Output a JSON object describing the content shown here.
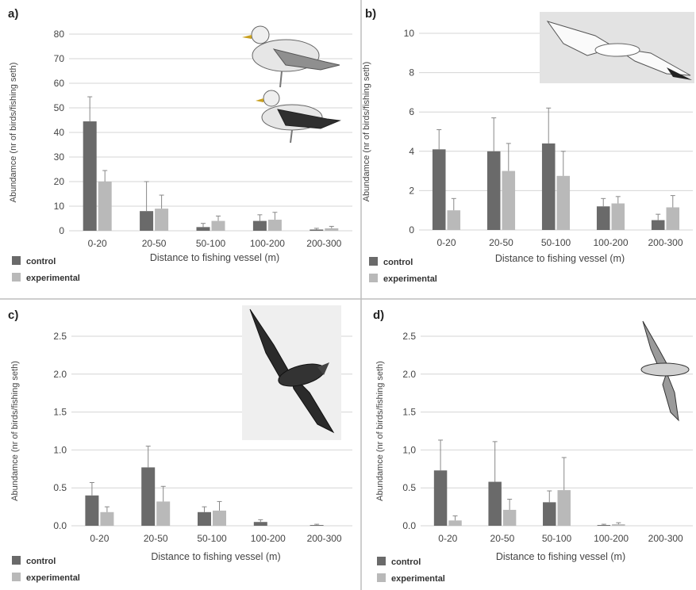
{
  "figure": {
    "background": "#ffffff",
    "divider_color": "#bdbdbd"
  },
  "colors": {
    "control": "#6a6a6a",
    "experimental": "#b9b9b9",
    "grid": "#d4d4d4",
    "error": "#888888"
  },
  "legend": {
    "control": "control",
    "experimental": "experimental"
  },
  "chart_data": [
    {
      "type": "bar",
      "panel": "a)",
      "categories": [
        "0-20",
        "20-50",
        "50-100",
        "100-200",
        "200-300"
      ],
      "series": [
        {
          "name": "control",
          "values": [
            44.5,
            8,
            1.5,
            4,
            0.5
          ],
          "errors": [
            10,
            12,
            1.5,
            2.5,
            0.5
          ]
        },
        {
          "name": "experimental",
          "values": [
            20,
            9,
            4,
            4.5,
            1
          ],
          "errors": [
            4.5,
            5.5,
            2,
            3,
            0.8
          ]
        }
      ],
      "xlabel": "Distance to fishing vessel (m)",
      "ylabel": "Abundamce (nr of birds/fishing seth)",
      "ylim": [
        0,
        80
      ],
      "yticks": [
        "0",
        "10",
        "20",
        "30",
        "40",
        "50",
        "60",
        "70",
        "80"
      ],
      "grid": true,
      "legend": "bottom-left"
    },
    {
      "type": "bar",
      "panel": "b)",
      "categories": [
        "0-20",
        "20-50",
        "50-100",
        "100-200",
        "200-300"
      ],
      "series": [
        {
          "name": "control",
          "values": [
            4.1,
            4.0,
            4.4,
            1.2,
            0.5
          ],
          "errors": [
            1.0,
            1.7,
            1.8,
            0.4,
            0.3
          ]
        },
        {
          "name": "experimental",
          "values": [
            1.0,
            3.0,
            2.75,
            1.35,
            1.15
          ],
          "errors": [
            0.6,
            1.4,
            1.25,
            0.35,
            0.6
          ]
        }
      ],
      "xlabel": "Distance to fishing vessel (m)",
      "ylabel": "Abundamce (nr of birds/fishing seth)",
      "ylim": [
        0,
        10
      ],
      "yticks": [
        "0",
        "2",
        "4",
        "6",
        "8",
        "10"
      ],
      "grid": true,
      "legend": "bottom-left"
    },
    {
      "type": "bar",
      "panel": "c)",
      "categories": [
        "0-20",
        "20-50",
        "50-100",
        "100-200",
        "200-300"
      ],
      "series": [
        {
          "name": "control",
          "values": [
            0.4,
            0.77,
            0.18,
            0.05,
            0.01
          ],
          "errors": [
            0.17,
            0.28,
            0.07,
            0.03,
            0.01
          ]
        },
        {
          "name": "experimental",
          "values": [
            0.18,
            0.32,
            0.2,
            0.0,
            0.0
          ],
          "errors": [
            0.07,
            0.2,
            0.12,
            0,
            0
          ]
        }
      ],
      "xlabel": "Distance to fishing vessel (m)",
      "ylabel": "Abundamce (nr of birds/fishing seth)",
      "ylim": [
        0,
        2.5
      ],
      "yticks": [
        "0.0",
        "0.5",
        "1.0",
        "1.5",
        "2.0",
        "2.5"
      ],
      "grid": true,
      "legend": "bottom-left"
    },
    {
      "type": "bar",
      "panel": "d)",
      "categories": [
        "0-20",
        "20-50",
        "50-100",
        "100-200",
        "200-300"
      ],
      "series": [
        {
          "name": "control",
          "values": [
            0.73,
            0.58,
            0.31,
            0.01,
            0.0
          ],
          "errors": [
            0.4,
            0.53,
            0.15,
            0.01,
            0
          ]
        },
        {
          "name": "experimental",
          "values": [
            0.07,
            0.21,
            0.47,
            0.02,
            0.0
          ],
          "errors": [
            0.06,
            0.14,
            0.43,
            0.02,
            0
          ]
        }
      ],
      "xlabel": "Distance to fishing vessel (m)",
      "ylabel": "Abundamce (nr of birds/fishing seth)",
      "ylim": [
        0,
        2.5
      ],
      "yticks": [
        "0.0",
        "0.5",
        "1,0",
        "1.5",
        "2.0",
        "2.5"
      ],
      "grid": true,
      "legend": "bottom-left"
    }
  ]
}
